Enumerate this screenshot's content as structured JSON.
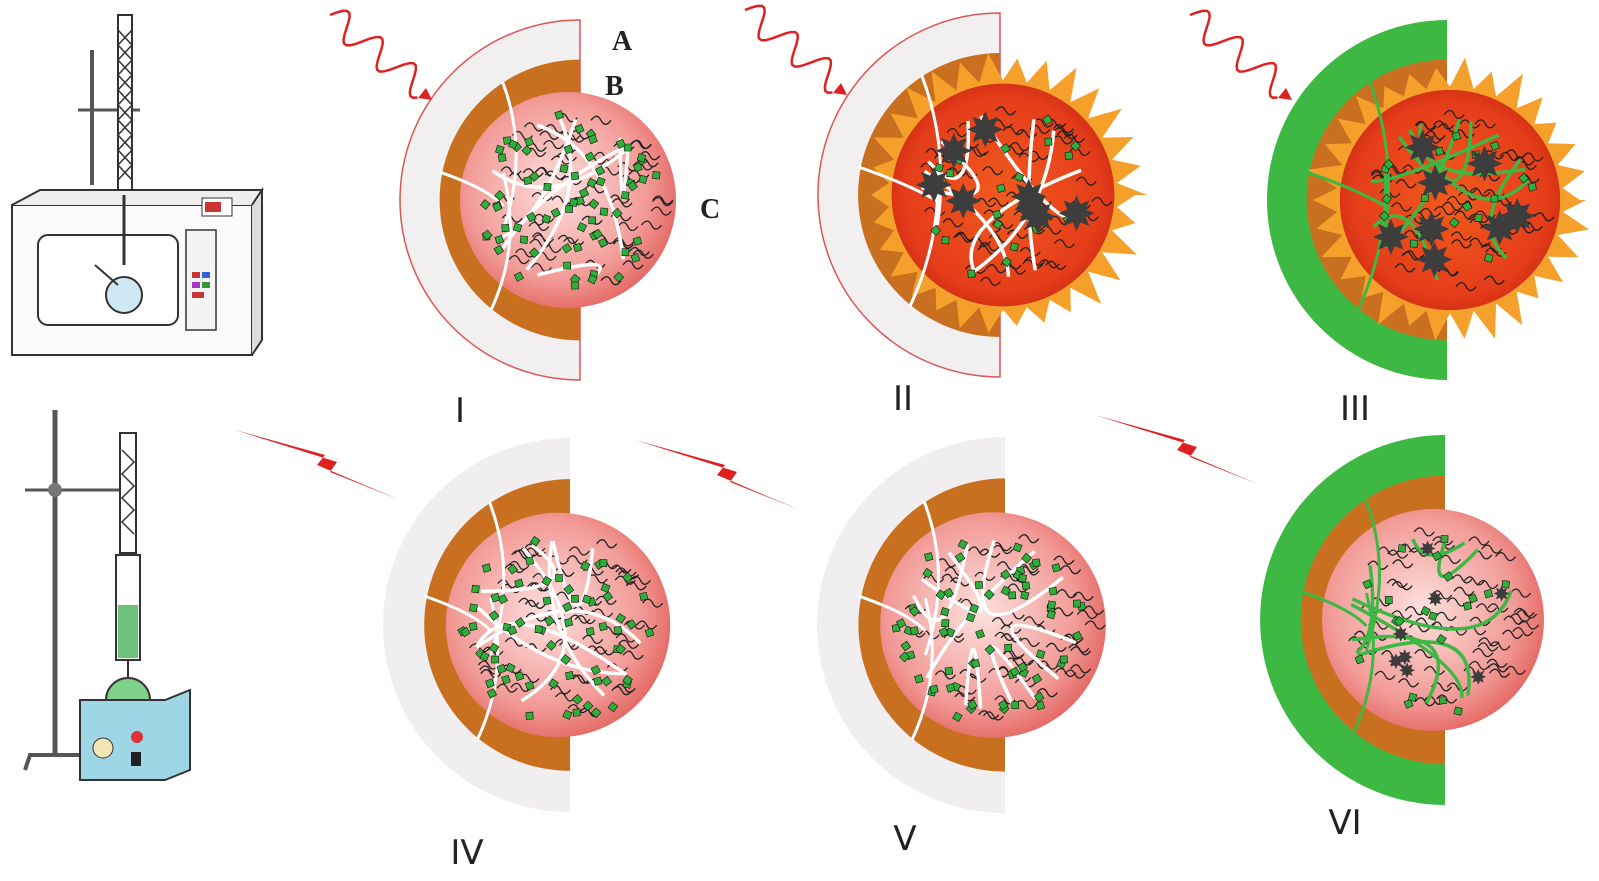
{
  "layer_labels": [
    "A",
    "B",
    "C"
  ],
  "panels": [
    "I",
    "II",
    "III",
    "IV",
    "V",
    "VI"
  ]
}
